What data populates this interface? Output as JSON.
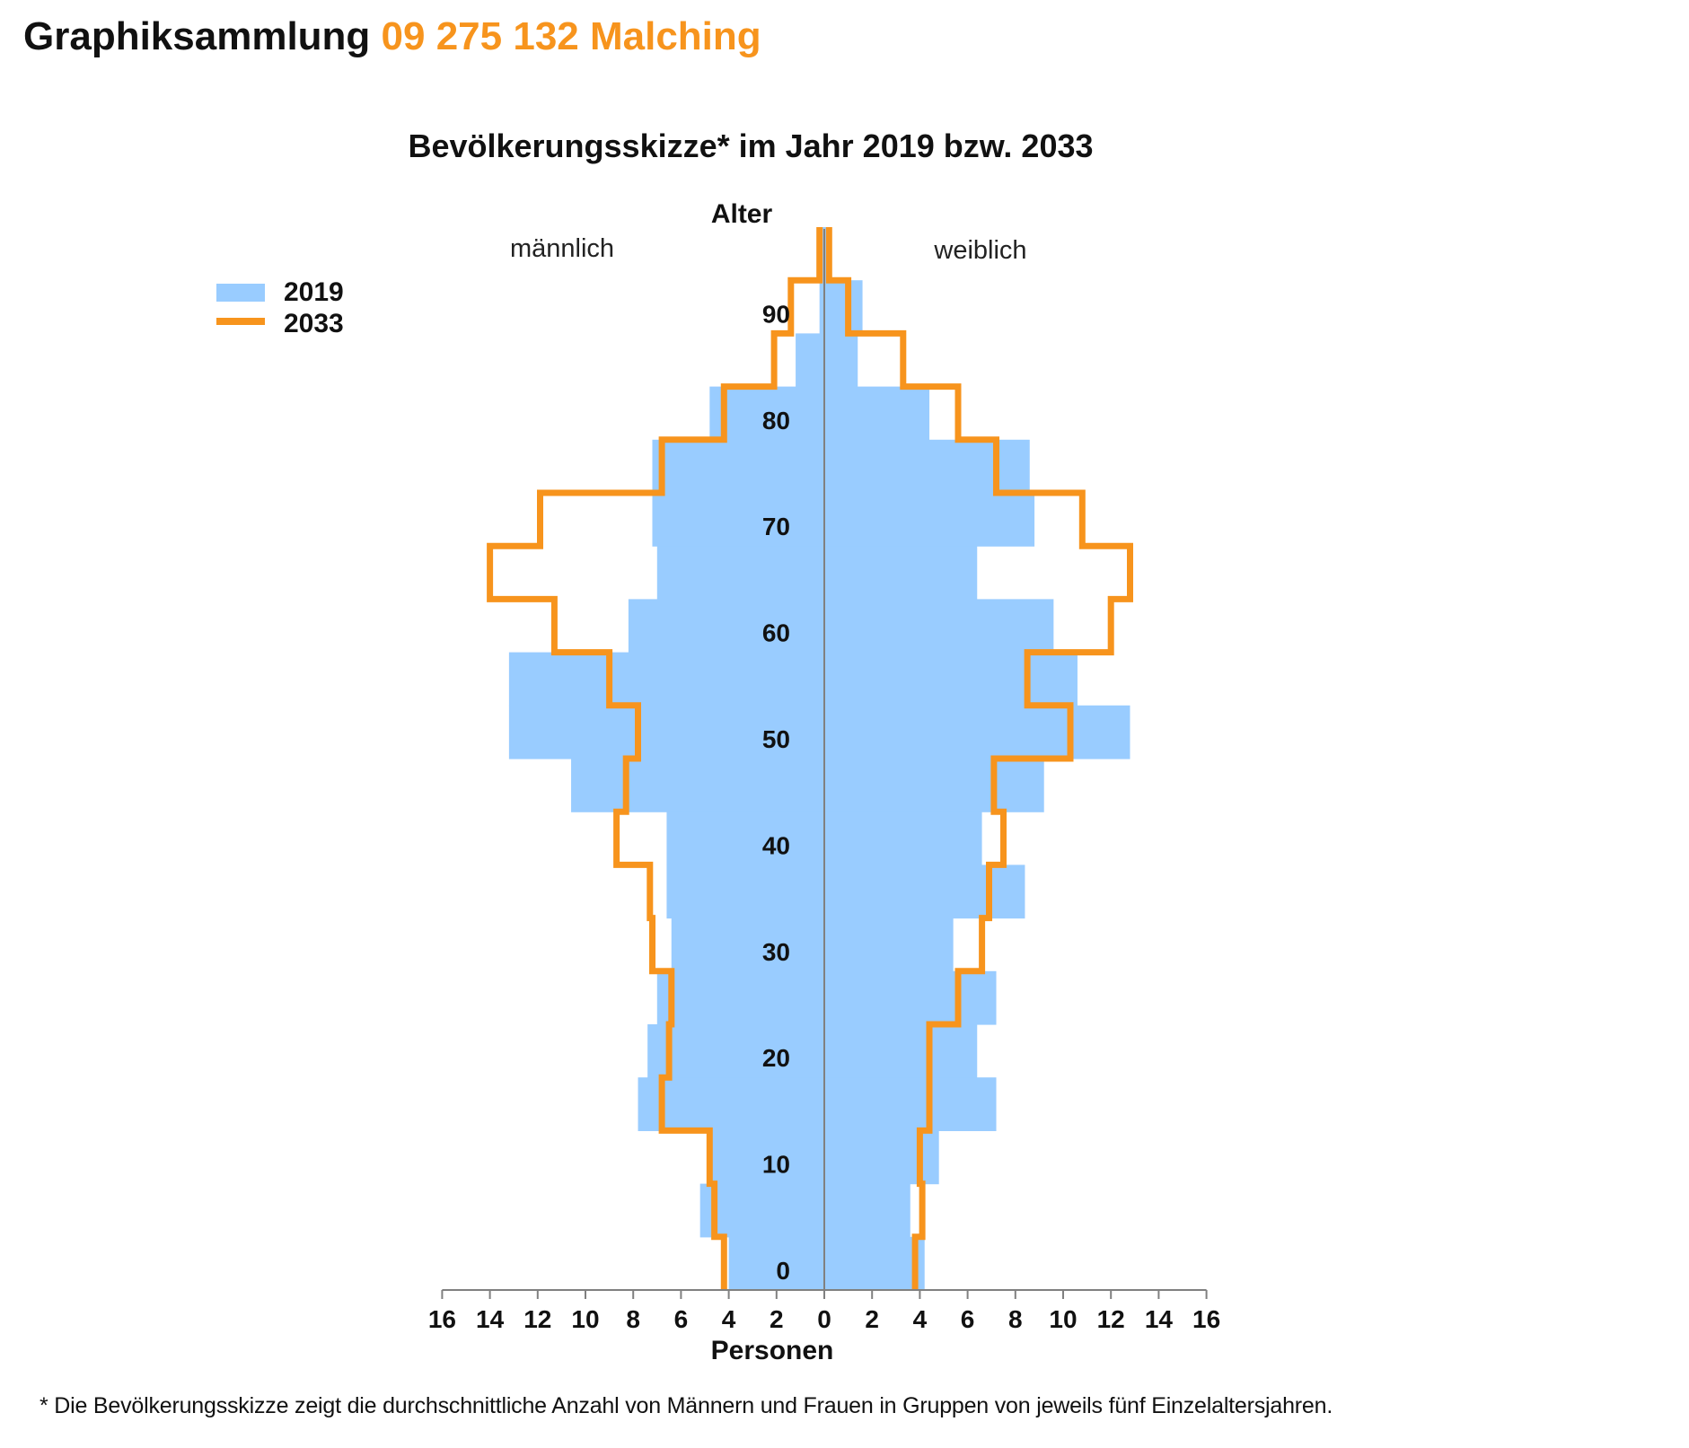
{
  "header": {
    "title": "Graphiksammlung",
    "region": "09 275 132 Malching"
  },
  "footnote": "*  Die Bevölkerungsskizze zeigt die durchschnittliche Anzahl von Männern und Frauen in Gruppen von jeweils fünf Einzelaltersjahren.",
  "colors": {
    "bar_2019": "#99ccff",
    "line_2033": "#f7941d",
    "axis": "#808080",
    "text": "#111111",
    "accent": "#f7941d"
  },
  "chart_data": {
    "type": "bar",
    "subtype": "population-pyramid",
    "title": "Bevölkerungsskizze* im Jahr 2019 bzw. 2033",
    "ylabel": "Alter",
    "xlabel": "Personen",
    "left_label": "männlich",
    "right_label": "weiblich",
    "xlim": [
      -16,
      16
    ],
    "ylim": [
      0,
      100
    ],
    "x_ticks": [
      16,
      14,
      12,
      10,
      8,
      6,
      4,
      2,
      0,
      2,
      4,
      6,
      8,
      10,
      12,
      14,
      16
    ],
    "y_ticks": [
      "0",
      "10",
      "20",
      "30",
      "40",
      "50",
      "60",
      "70",
      "80",
      "90"
    ],
    "legend": {
      "position": "top-left",
      "entries": [
        "2019",
        "2033"
      ]
    },
    "age_groups": [
      "0-4",
      "5-9",
      "10-14",
      "15-19",
      "20-24",
      "25-29",
      "30-34",
      "35-39",
      "40-44",
      "45-49",
      "50-54",
      "55-59",
      "60-64",
      "65-69",
      "70-74",
      "75-79",
      "80-84",
      "85-89",
      "90-94",
      "95-99"
    ],
    "series": [
      {
        "name": "2019",
        "style": "bar",
        "male": [
          4.0,
          5.2,
          4.8,
          7.8,
          7.4,
          7.0,
          6.4,
          6.6,
          6.6,
          10.6,
          13.2,
          13.2,
          8.2,
          7.0,
          7.2,
          7.2,
          4.8,
          1.2,
          0.2,
          0.2
        ],
        "female": [
          4.2,
          3.6,
          4.8,
          7.2,
          6.4,
          7.2,
          5.4,
          8.4,
          6.6,
          9.2,
          12.8,
          10.6,
          9.6,
          6.4,
          8.8,
          8.6,
          4.4,
          1.4,
          1.6,
          0.2
        ]
      },
      {
        "name": "2033",
        "style": "line",
        "male": [
          4.2,
          4.6,
          4.8,
          6.8,
          6.5,
          6.4,
          7.2,
          7.3,
          8.7,
          8.3,
          7.8,
          9.0,
          11.3,
          14.0,
          11.9,
          6.8,
          4.2,
          2.1,
          1.4,
          0.2
        ],
        "female": [
          3.8,
          4.1,
          4.0,
          4.4,
          4.4,
          5.6,
          6.6,
          6.9,
          7.5,
          7.1,
          10.3,
          8.5,
          12.0,
          12.8,
          10.8,
          7.2,
          5.6,
          3.3,
          1.0,
          0.2
        ]
      }
    ]
  }
}
